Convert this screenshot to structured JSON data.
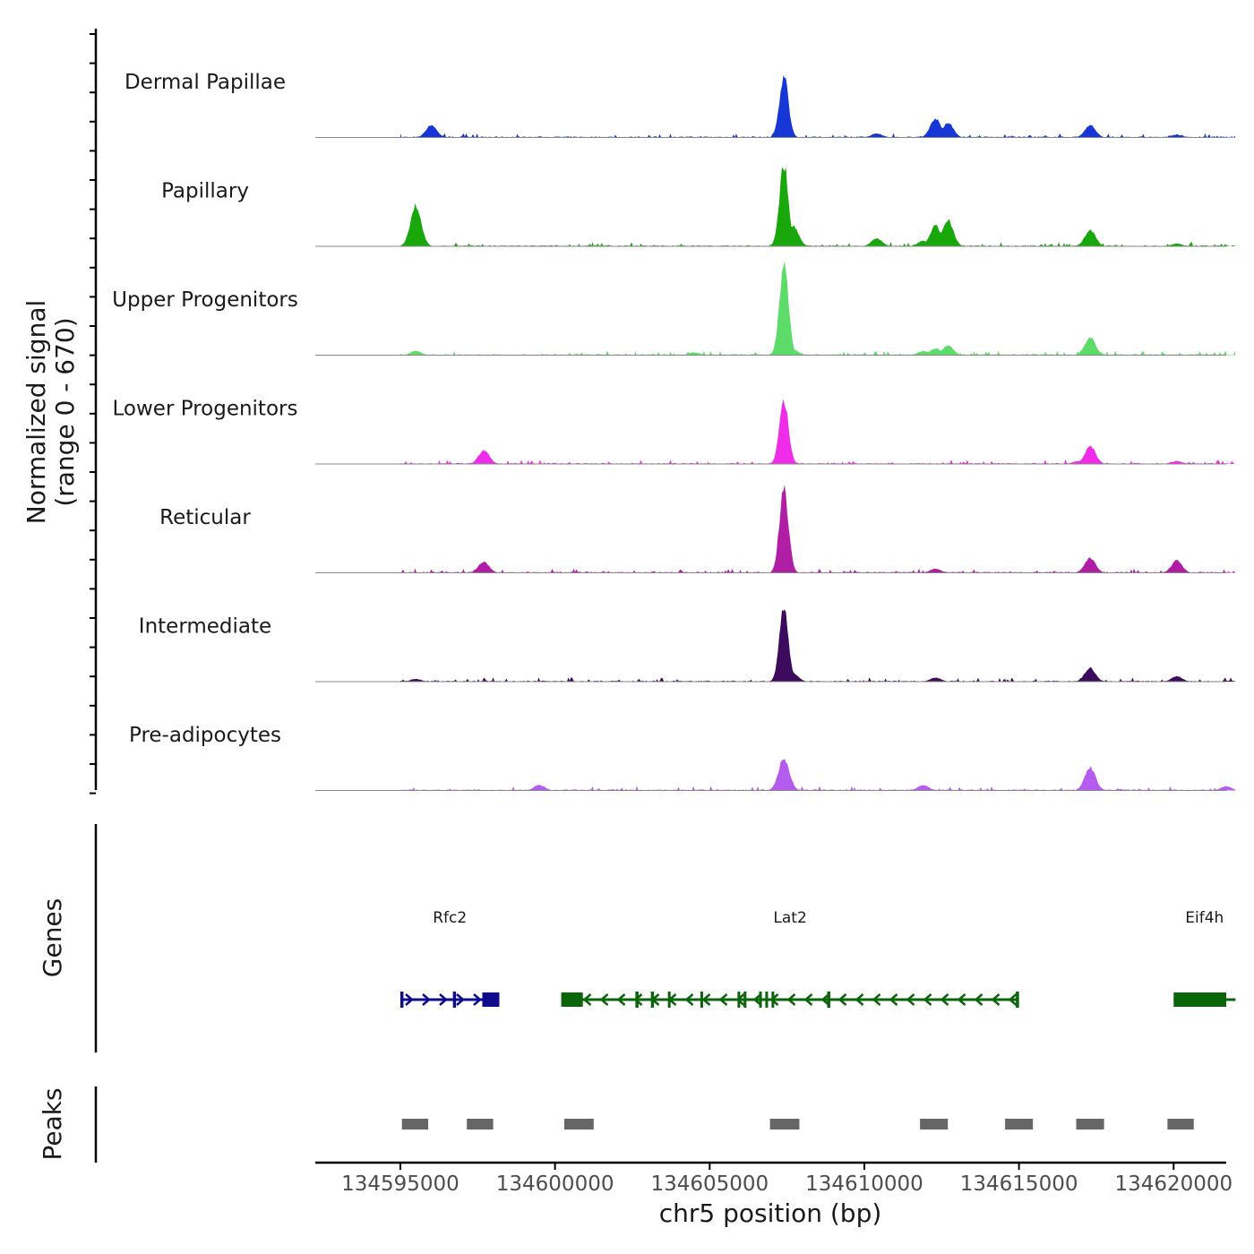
{
  "chart_data": {
    "type": "area",
    "title": "",
    "xlabel": "chr5 position (bp)",
    "ylabel": [
      "Normalized signal",
      "(range 0 - 670)"
    ],
    "ylim": [
      0,
      670
    ],
    "xlim": [
      134592250,
      134621700
    ],
    "x_ticks": [
      134595000,
      134600000,
      134605000,
      134610000,
      134615000,
      134620000
    ],
    "x_tick_labels": [
      "134595000",
      "134600000",
      "134605000",
      "134610000",
      "134615000",
      "134620000"
    ],
    "signal_span": [
      134595000,
      134622000
    ],
    "series": [
      {
        "name": "Dermal Papillae",
        "color": "#1637d6",
        "peaks": [
          [
            134596000,
            90
          ],
          [
            134607400,
            450
          ],
          [
            134610400,
            30
          ],
          [
            134612300,
            140
          ],
          [
            134612700,
            110
          ],
          [
            134617300,
            90
          ],
          [
            134620100,
            20
          ]
        ]
      },
      {
        "name": "Papillary",
        "color": "#18a80c",
        "peaks": [
          [
            134595500,
            300
          ],
          [
            134607400,
            600
          ],
          [
            134607700,
            150
          ],
          [
            134610400,
            60
          ],
          [
            134611900,
            40
          ],
          [
            134612300,
            150
          ],
          [
            134612700,
            190
          ],
          [
            134617300,
            120
          ],
          [
            134620100,
            20
          ]
        ]
      },
      {
        "name": "Upper Progenitors",
        "color": "#5edc6a",
        "peaks": [
          [
            134595500,
            30
          ],
          [
            134604500,
            20
          ],
          [
            134607400,
            670
          ],
          [
            134607700,
            40
          ],
          [
            134611900,
            30
          ],
          [
            134612300,
            50
          ],
          [
            134612700,
            70
          ],
          [
            134617300,
            130
          ]
        ]
      },
      {
        "name": "Lower Progenitors",
        "color": "#ef2ce8",
        "peaks": [
          [
            134597700,
            100
          ],
          [
            134607400,
            470
          ],
          [
            134616900,
            20
          ],
          [
            134617300,
            130
          ],
          [
            134620100,
            20
          ]
        ]
      },
      {
        "name": "Reticular",
        "color": "#b01ea6",
        "peaks": [
          [
            134597700,
            80
          ],
          [
            134607400,
            620
          ],
          [
            134612300,
            30
          ],
          [
            134617300,
            110
          ],
          [
            134620100,
            90
          ]
        ]
      },
      {
        "name": "Intermediate",
        "color": "#3d0b5e",
        "peaks": [
          [
            134595500,
            20
          ],
          [
            134607400,
            540
          ],
          [
            134607700,
            60
          ],
          [
            134612300,
            30
          ],
          [
            134617300,
            100
          ],
          [
            134620100,
            40
          ]
        ]
      },
      {
        "name": "Pre-adipocytes",
        "color": "#b55cf0",
        "peaks": [
          [
            134599500,
            40
          ],
          [
            134607400,
            240
          ],
          [
            134611900,
            40
          ],
          [
            134617300,
            170
          ],
          [
            134621700,
            30
          ]
        ]
      }
    ],
    "genes": [
      {
        "name": "Rfc2",
        "color": "#0d0d8c",
        "strand": "+",
        "start": 134595000,
        "end": 134598200,
        "exons": [
          [
            134595000,
            134595100
          ],
          [
            134596700,
            134596800
          ],
          [
            134597650,
            134598200
          ]
        ]
      },
      {
        "name": "Lat2",
        "color": "#0a640a",
        "strand": "-",
        "start": 134600200,
        "end": 134615000,
        "exons": [
          [
            134600200,
            134600900
          ],
          [
            134602600,
            134602700
          ],
          [
            134603100,
            134603200
          ],
          [
            134603650,
            134603700
          ],
          [
            134604700,
            134604750
          ],
          [
            134605900,
            134605950
          ],
          [
            134606100,
            134606150
          ],
          [
            134606600,
            134606650
          ],
          [
            134606800,
            134606850
          ],
          [
            134607000,
            134607050
          ],
          [
            134608800,
            134608900
          ],
          [
            134614900,
            134615000
          ]
        ]
      },
      {
        "name": "Eif4h",
        "color": "#0a640a",
        "strand": "-",
        "start": 134620000,
        "end": 134622000,
        "exons": [
          [
            134620000,
            134621700
          ]
        ]
      }
    ],
    "peaks": [
      [
        134595050,
        134595900
      ],
      [
        134597150,
        134598000
      ],
      [
        134600300,
        134601250
      ],
      [
        134606950,
        134607900
      ],
      [
        134611800,
        134612700
      ],
      [
        134614550,
        134615450
      ],
      [
        134616850,
        134617750
      ],
      [
        134619800,
        134620650
      ]
    ],
    "peak_color": "#666666",
    "panel_labels": {
      "genes": "Genes",
      "peaks": "Peaks"
    }
  }
}
